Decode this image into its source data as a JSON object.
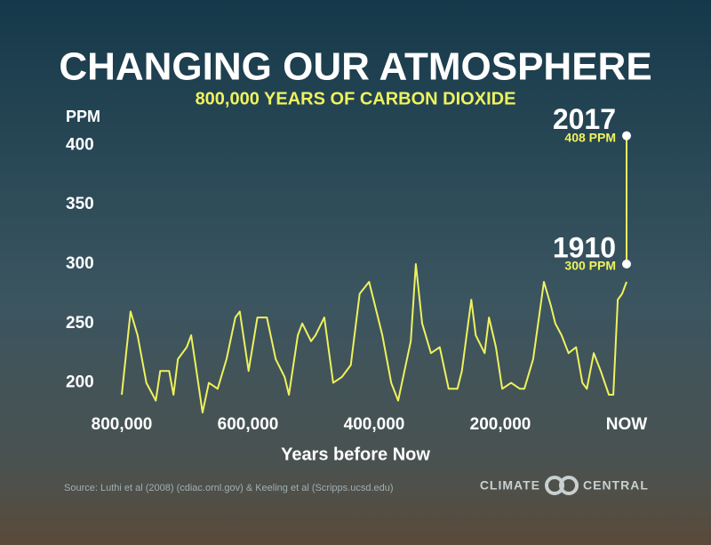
{
  "chart_data": {
    "type": "line",
    "title": "CHANGING OUR ATMOSPHERE",
    "subtitle": "800,000 YEARS OF CARBON DIOXIDE",
    "y_label": "PPM",
    "x_label": "Years before Now",
    "source": "Source: Luthi et al (2008) (cdiac.ornl.gov) & Keeling et al (Scripps.ucsd.edu)",
    "logo": [
      "CLIMATE",
      "CENTRAL"
    ],
    "xlim": [
      800000,
      0
    ],
    "xticks": [
      {
        "value": 800000,
        "label": "800,000"
      },
      {
        "value": 600000,
        "label": "600,000"
      },
      {
        "value": 400000,
        "label": "400,000"
      },
      {
        "value": 200000,
        "label": "200,000"
      },
      {
        "value": 0,
        "label": "NOW"
      }
    ],
    "ylim": [
      175,
      410
    ],
    "yticks": [
      200,
      250,
      300,
      350,
      400
    ],
    "grid": false,
    "color": "#eef25e",
    "x": [
      800000,
      786000,
      775000,
      761000,
      746000,
      739000,
      725000,
      718000,
      711000,
      697000,
      690000,
      683000,
      672000,
      662000,
      648000,
      634000,
      620000,
      613000,
      599000,
      585000,
      570000,
      556000,
      542000,
      535000,
      521000,
      514000,
      500000,
      493000,
      479000,
      465000,
      451000,
      437000,
      423000,
      408000,
      394000,
      387000,
      373000,
      362000,
      352000,
      342000,
      334000,
      324000,
      310000,
      296000,
      282000,
      268000,
      261000,
      246000,
      239000,
      225000,
      218000,
      207000,
      197000,
      183000,
      169000,
      162000,
      148000,
      131000,
      120000,
      113000,
      103000,
      92000,
      80000,
      70000,
      63000,
      52000,
      41000,
      28000,
      21000,
      14000,
      7000,
      0
    ],
    "values": [
      190,
      260,
      240,
      200,
      185,
      210,
      210,
      190,
      220,
      230,
      240,
      215,
      175,
      200,
      195,
      220,
      255,
      260,
      210,
      255,
      255,
      220,
      205,
      190,
      240,
      250,
      235,
      240,
      255,
      200,
      205,
      215,
      275,
      285,
      255,
      240,
      200,
      185,
      210,
      235,
      300,
      250,
      225,
      230,
      195,
      195,
      210,
      270,
      240,
      225,
      255,
      230,
      195,
      200,
      195,
      195,
      220,
      285,
      265,
      250,
      240,
      225,
      230,
      200,
      195,
      225,
      210,
      190,
      190,
      270,
      275,
      285
    ],
    "highlights": [
      {
        "label": "2017",
        "value_label": "408 PPM",
        "value": 408
      },
      {
        "label": "1910",
        "value_label": "300 PPM",
        "value": 300
      }
    ]
  }
}
